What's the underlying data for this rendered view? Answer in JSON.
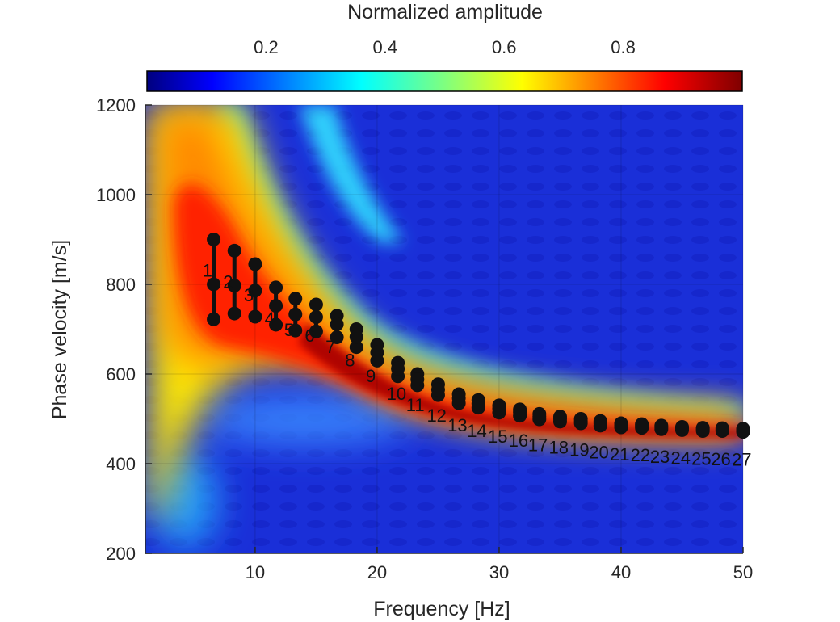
{
  "chart_data": {
    "type": "heatmap",
    "title": "",
    "xlabel": "Frequency [Hz]",
    "ylabel": "Phase velocity [m/s]",
    "xlim": [
      1,
      50
    ],
    "ylim": [
      200,
      1200
    ],
    "x_ticks": [
      10,
      20,
      30,
      40,
      50
    ],
    "y_ticks": [
      200,
      400,
      600,
      800,
      1000,
      1200
    ],
    "grid": true,
    "colorbar": {
      "label": "Normalized amplitude",
      "placement": "top",
      "range": [
        0,
        1
      ],
      "ticks": [
        0.2,
        0.4,
        0.6,
        0.8
      ],
      "colormap": "jet"
    },
    "picked_points": {
      "labels": [
        "1",
        "2",
        "3",
        "4",
        "5",
        "6",
        "7",
        "8",
        "9",
        "10",
        "11",
        "12",
        "13",
        "14",
        "15",
        "16",
        "17",
        "18",
        "19",
        "20",
        "21",
        "22",
        "23",
        "24",
        "25",
        "26",
        "27"
      ],
      "frequency": [
        6.6,
        8.3,
        10.0,
        11.7,
        13.3,
        15.0,
        16.7,
        18.3,
        20.0,
        21.7,
        23.3,
        25.0,
        26.7,
        28.3,
        30.0,
        31.7,
        33.3,
        35.0,
        36.7,
        38.3,
        40.0,
        41.7,
        43.3,
        45.0,
        46.7,
        48.3,
        50.0
      ],
      "velocity": [
        800,
        797,
        786,
        752,
        733,
        727,
        711,
        683,
        648,
        612,
        588,
        565,
        546,
        534,
        523,
        515,
        505,
        500,
        495,
        490,
        486,
        484,
        481,
        479,
        477,
        476,
        475
      ],
      "upper": [
        900,
        875,
        845,
        793,
        768,
        755,
        730,
        700,
        665,
        625,
        600,
        577,
        555,
        542,
        530,
        521,
        511,
        505,
        500,
        495,
        490,
        488,
        485,
        482,
        480,
        479,
        478
      ],
      "lower": [
        722,
        735,
        728,
        710,
        697,
        695,
        682,
        660,
        630,
        595,
        575,
        553,
        535,
        525,
        514,
        507,
        499,
        494,
        490,
        485,
        481,
        480,
        477,
        475,
        473,
        473,
        471
      ]
    },
    "colors": {
      "points": "#111111",
      "background_field": "#1a2ad6"
    }
  }
}
